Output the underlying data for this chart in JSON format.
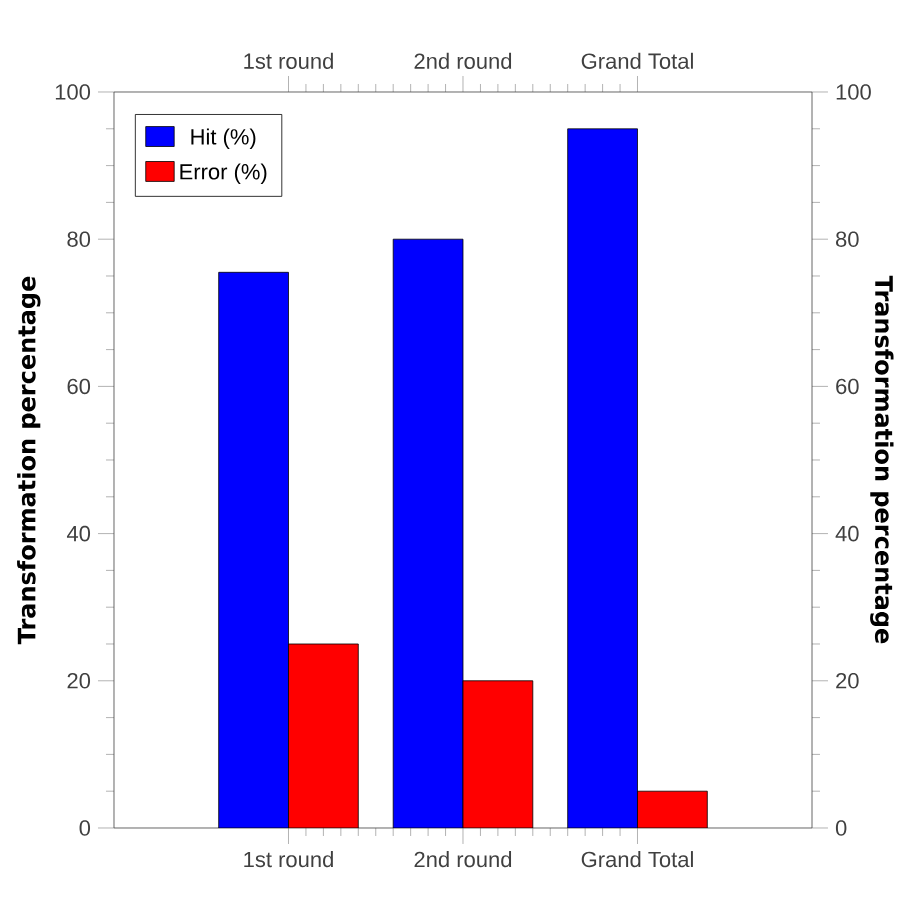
{
  "chart_data": {
    "type": "bar",
    "categories": [
      "1st round",
      "2nd round",
      "Grand Total"
    ],
    "series": [
      {
        "name": "Hit (%)",
        "color": "#0000ff",
        "values": [
          75.5,
          80,
          95
        ]
      },
      {
        "name": "Error (%)",
        "color": "#ff0000",
        "values": [
          25,
          20,
          5
        ]
      }
    ],
    "ylabel": "Transformation percentage",
    "y2label": "Transformation percentage",
    "ylim": [
      0,
      100
    ],
    "yticks": [
      0,
      20,
      40,
      60,
      80,
      100
    ],
    "y2lim": [
      0,
      100
    ],
    "y2ticks": [
      0,
      20,
      40,
      60,
      80,
      100
    ],
    "legend": "top left"
  }
}
